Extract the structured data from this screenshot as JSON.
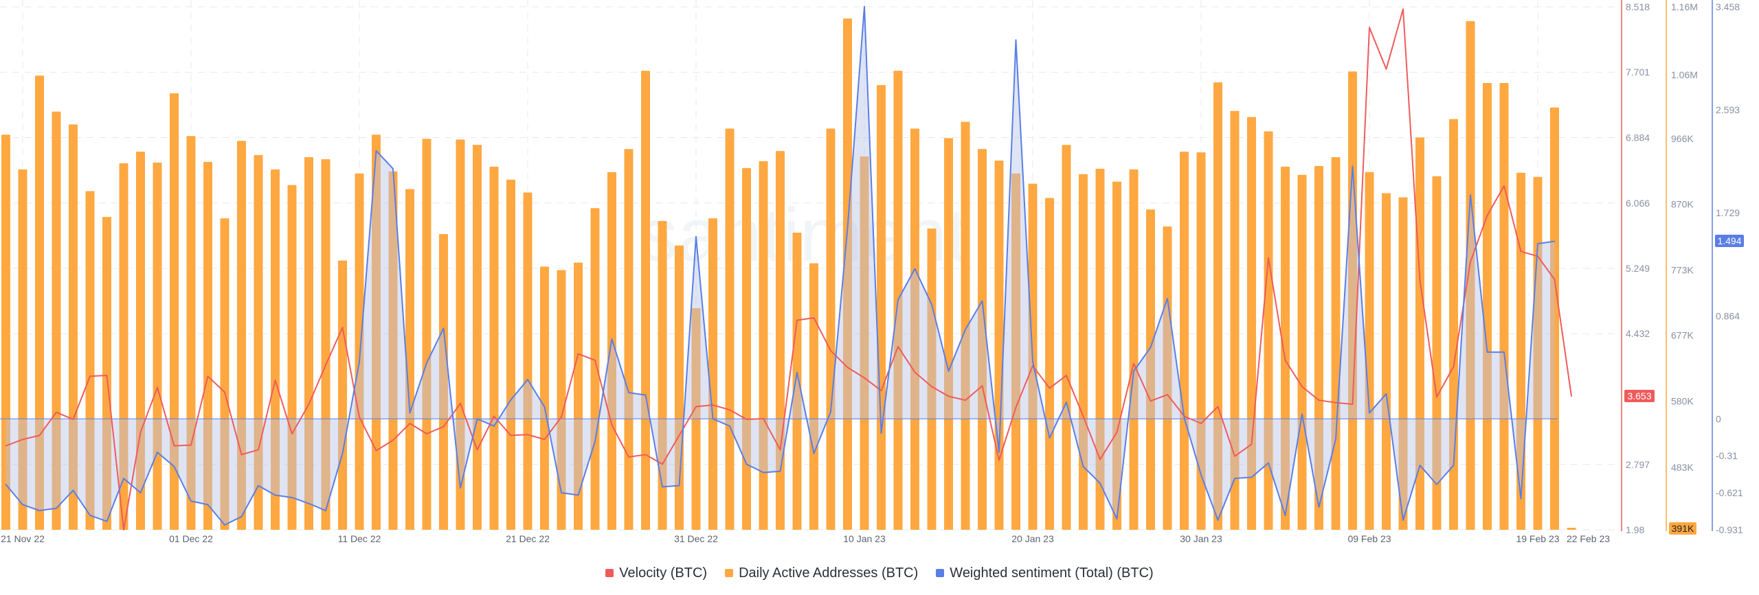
{
  "chart_data": {
    "type": "bar+line",
    "watermark": "santiment",
    "x_tick_labels": [
      "21 Nov 22",
      "01 Dec 22",
      "11 Dec 22",
      "21 Dec 22",
      "31 Dec 22",
      "10 Jan 23",
      "20 Jan 23",
      "30 Jan 23",
      "09 Feb 23",
      "19 Feb 23",
      "22 Feb 23"
    ],
    "x_tick_index": [
      1,
      11,
      21,
      31,
      41,
      51,
      61,
      71,
      81,
      91,
      94
    ],
    "axes": {
      "velocity": {
        "min": 1.98,
        "max": 8.518,
        "ticks": [
          "8.518",
          "7.701",
          "6.884",
          "6.066",
          "5.249",
          "4.432",
          "2.797",
          "1.98"
        ]
      },
      "daa": {
        "min": 391000,
        "max": 1160000,
        "ticks": [
          "1.16M",
          "1.06M",
          "966K",
          "870K",
          "773K",
          "677K",
          "580K",
          "483K"
        ],
        "min_label": "391K"
      },
      "sentiment": {
        "min": -0.931,
        "max": 3.458,
        "ticks": [
          "3.458",
          "2.593",
          "1.729",
          "0.864",
          "0",
          "-0.31",
          "-0.621",
          "-0.931"
        ]
      }
    },
    "current_badges": {
      "velocity": "3.653",
      "sentiment": "1.494"
    },
    "series": [
      {
        "name": "Velocity (BTC)",
        "color": "#ef5b5b",
        "axis": "velocity",
        "values": [
          3.03,
          3.11,
          3.16,
          3.45,
          3.36,
          3.9,
          3.91,
          1.98,
          3.2,
          3.76,
          3.03,
          3.04,
          3.9,
          3.7,
          2.92,
          2.98,
          3.85,
          3.18,
          3.55,
          4.04,
          4.51,
          3.39,
          2.97,
          3.1,
          3.31,
          3.18,
          3.27,
          3.56,
          2.98,
          3.4,
          3.16,
          3.17,
          3.11,
          3.39,
          4.18,
          4.1,
          3.29,
          2.89,
          2.92,
          2.8,
          3.16,
          3.52,
          3.54,
          3.48,
          3.36,
          3.37,
          2.98,
          4.6,
          4.63,
          4.22,
          4.01,
          3.88,
          3.72,
          4.27,
          3.95,
          3.77,
          3.65,
          3.6,
          3.78,
          2.85,
          3.51,
          4.03,
          3.75,
          3.91,
          3.4,
          2.86,
          3.2,
          4.06,
          3.59,
          3.67,
          3.4,
          3.31,
          3.52,
          2.9,
          3.05,
          5.38,
          4.1,
          3.77,
          3.6,
          3.57,
          3.55,
          8.26,
          7.74,
          8.49,
          5.1,
          3.64,
          4.02,
          5.33,
          5.91,
          6.28,
          5.46,
          5.4,
          5.11,
          3.65
        ]
      },
      {
        "name": "Daily Active Addresses (BTC)",
        "color": "#ffa841",
        "axis": "daa",
        "values": [
          972000,
          921000,
          1059000,
          1006000,
          987000,
          889000,
          851000,
          930000,
          947000,
          931000,
          1033000,
          970000,
          932000,
          849000,
          963000,
          942000,
          921000,
          898000,
          939000,
          936000,
          787000,
          915000,
          972000,
          918000,
          892000,
          966000,
          826000,
          965000,
          957000,
          925000,
          906000,
          887000,
          778000,
          773000,
          784000,
          864000,
          917000,
          951000,
          1066000,
          845000,
          809000,
          717000,
          849000,
          981000,
          923000,
          933000,
          948000,
          828000,
          783000,
          981000,
          1143000,
          940000,
          1045000,
          1066000,
          981000,
          834000,
          967000,
          991000,
          951000,
          934000,
          915000,
          900000,
          879000,
          957000,
          914000,
          922000,
          903000,
          921000,
          862000,
          837000,
          947000,
          946000,
          1049000,
          1007000,
          998000,
          977000,
          925000,
          913000,
          926000,
          939000,
          1065000,
          917000,
          886000,
          880000,
          968000,
          911000,
          995000,
          1139000,
          1048000,
          1048000,
          916000,
          910000,
          1012000,
          394000
        ]
      },
      {
        "name": "Weighted sentiment (Total) (BTC)",
        "color": "#5a7ee6",
        "axis": "sentiment",
        "values": [
          -0.55,
          -0.72,
          -0.77,
          -0.75,
          -0.6,
          -0.81,
          -0.86,
          -0.5,
          -0.62,
          -0.28,
          -0.4,
          -0.69,
          -0.72,
          -0.89,
          -0.82,
          -0.56,
          -0.64,
          -0.66,
          -0.71,
          -0.77,
          -0.29,
          0.48,
          2.25,
          2.1,
          0.05,
          0.47,
          0.76,
          -0.58,
          0.0,
          -0.06,
          0.16,
          0.33,
          0.1,
          -0.62,
          -0.64,
          -0.19,
          0.67,
          0.22,
          0.2,
          -0.57,
          -0.56,
          1.53,
          0.0,
          -0.06,
          -0.38,
          -0.45,
          -0.44,
          0.39,
          -0.29,
          0.06,
          1.6,
          3.46,
          -0.12,
          1.0,
          1.26,
          0.96,
          0.4,
          0.75,
          0.99,
          -0.28,
          3.18,
          0.48,
          -0.16,
          0.14,
          -0.4,
          -0.54,
          -0.84,
          0.4,
          0.6,
          1.01,
          0.01,
          -0.47,
          -0.85,
          -0.5,
          -0.49,
          -0.37,
          -0.81,
          0.04,
          -0.74,
          -0.17,
          2.12,
          0.05,
          0.21,
          -0.85,
          -0.39,
          -0.55,
          -0.39,
          1.88,
          0.56,
          0.56,
          -0.67,
          1.47,
          1.49
        ]
      }
    ],
    "legend": [
      "Velocity (BTC)",
      "Daily Active Addresses (BTC)",
      "Weighted sentiment (Total) (BTC)"
    ]
  }
}
